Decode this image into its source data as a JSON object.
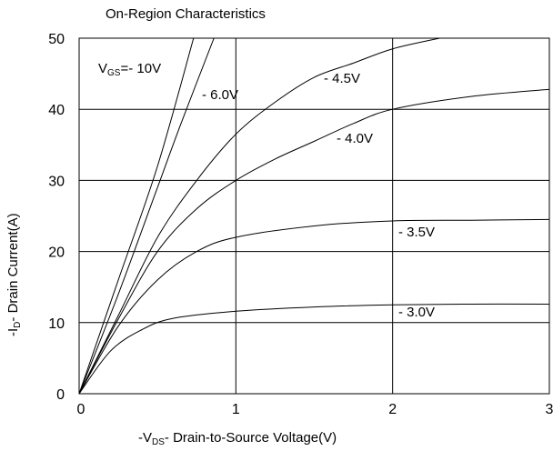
{
  "chart_data": {
    "type": "line",
    "title": "On-Region Characteristics",
    "xlabel": {
      "prefix": "-V",
      "sub": "DS",
      "suffix": "- Drain-to-Source Voltage(V)"
    },
    "ylabel": {
      "prefix": "-I",
      "sub": "D",
      "suffix": "- Drain Current(A)"
    },
    "xlim": [
      0,
      3
    ],
    "ylim": [
      0,
      50
    ],
    "x_ticks": [
      0,
      1,
      2,
      3
    ],
    "x_tick_labels": [
      "0",
      "1",
      "2",
      "3"
    ],
    "y_ticks": [
      0,
      10,
      20,
      30,
      40,
      50
    ],
    "y_tick_labels": [
      "0",
      "10",
      "20",
      "30",
      "40",
      "50"
    ],
    "grid": true,
    "legend_prefix": {
      "prefix": "V",
      "sub": "GS",
      "suffix": "="
    },
    "series": [
      {
        "name": "- 10V",
        "points": [
          [
            0,
            0
          ],
          [
            0.25,
            16
          ],
          [
            0.5,
            32
          ],
          [
            0.73,
            50
          ]
        ]
      },
      {
        "name": "- 6.0V",
        "points": [
          [
            0,
            0
          ],
          [
            0.25,
            14
          ],
          [
            0.5,
            29
          ],
          [
            0.65,
            38
          ],
          [
            0.86,
            50
          ]
        ]
      },
      {
        "name": "- 4.5V",
        "points": [
          [
            0,
            0
          ],
          [
            0.25,
            11
          ],
          [
            0.5,
            22
          ],
          [
            0.75,
            30
          ],
          [
            1.0,
            36.5
          ],
          [
            1.25,
            41
          ],
          [
            1.5,
            44.5
          ],
          [
            1.75,
            46.5
          ],
          [
            2.0,
            48.5
          ],
          [
            2.3,
            50
          ]
        ]
      },
      {
        "name": "- 4.0V",
        "points": [
          [
            0,
            0
          ],
          [
            0.25,
            10.5
          ],
          [
            0.5,
            20
          ],
          [
            0.75,
            26
          ],
          [
            1.0,
            30
          ],
          [
            1.25,
            33
          ],
          [
            1.5,
            35.5
          ],
          [
            1.75,
            38
          ],
          [
            2.0,
            40
          ],
          [
            2.5,
            41.8
          ],
          [
            3.0,
            42.8
          ]
        ]
      },
      {
        "name": "- 3.5V",
        "points": [
          [
            0,
            0
          ],
          [
            0.25,
            9.5
          ],
          [
            0.5,
            16
          ],
          [
            0.75,
            20
          ],
          [
            1.0,
            22
          ],
          [
            1.5,
            23.6
          ],
          [
            2.0,
            24.3
          ],
          [
            2.5,
            24.4
          ],
          [
            3.0,
            24.5
          ]
        ]
      },
      {
        "name": "- 3.0V",
        "points": [
          [
            0,
            0
          ],
          [
            0.2,
            6
          ],
          [
            0.4,
            9
          ],
          [
            0.6,
            10.6
          ],
          [
            1.0,
            11.6
          ],
          [
            1.5,
            12.2
          ],
          [
            2.0,
            12.5
          ],
          [
            2.5,
            12.6
          ],
          [
            3.0,
            12.6
          ]
        ]
      }
    ]
  }
}
